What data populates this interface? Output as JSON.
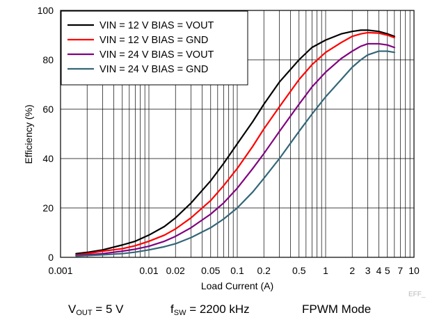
{
  "chart_data": {
    "type": "line",
    "xlabel": "Load Current (A)",
    "ylabel": "Efficiency (%)",
    "xscale": "log",
    "xlim": [
      0.001,
      10
    ],
    "ylim": [
      0,
      100
    ],
    "grid": true,
    "legend_position": "top-left",
    "x_ticks": [
      {
        "value": 0.001,
        "label": "0.001"
      },
      {
        "value": 0.01,
        "label": "0.01"
      },
      {
        "value": 0.02,
        "label": "0.02"
      },
      {
        "value": 0.05,
        "label": "0.05"
      },
      {
        "value": 0.1,
        "label": "0.1"
      },
      {
        "value": 0.2,
        "label": "0.2"
      },
      {
        "value": 0.5,
        "label": "0.5"
      },
      {
        "value": 1,
        "label": "1"
      },
      {
        "value": 2,
        "label": "2"
      },
      {
        "value": 3,
        "label": "3"
      },
      {
        "value": 4,
        "label": "4"
      },
      {
        "value": 5,
        "label": "5"
      },
      {
        "value": 7,
        "label": "7"
      },
      {
        "value": 10,
        "label": "10"
      }
    ],
    "y_ticks": [
      {
        "value": 0,
        "label": "0"
      },
      {
        "value": 20,
        "label": "20"
      },
      {
        "value": 40,
        "label": "40"
      },
      {
        "value": 60,
        "label": "60"
      },
      {
        "value": 80,
        "label": "80"
      },
      {
        "value": 100,
        "label": "100"
      }
    ],
    "series": [
      {
        "name": "VIN = 12 V BIAS = VOUT",
        "color": "#000000",
        "x": [
          0.0015,
          0.002,
          0.003,
          0.005,
          0.007,
          0.01,
          0.015,
          0.02,
          0.03,
          0.05,
          0.07,
          0.1,
          0.15,
          0.2,
          0.3,
          0.5,
          0.7,
          1,
          1.5,
          2,
          2.5,
          3,
          4,
          5,
          6
        ],
        "y": [
          1.5,
          2,
          3,
          5,
          6.5,
          9,
          12.5,
          16,
          22,
          31,
          38,
          46,
          55,
          62,
          71,
          80,
          85,
          88,
          90.5,
          91.5,
          92,
          92,
          91.5,
          90.5,
          89.5
        ]
      },
      {
        "name": "VIN = 12 V BIAS = GND",
        "color": "#ff0000",
        "x": [
          0.0015,
          0.002,
          0.003,
          0.005,
          0.007,
          0.01,
          0.015,
          0.02,
          0.03,
          0.05,
          0.07,
          0.1,
          0.15,
          0.2,
          0.3,
          0.5,
          0.7,
          1,
          1.5,
          2,
          2.5,
          3,
          4,
          5,
          6
        ],
        "y": [
          1,
          1.5,
          2.5,
          3.5,
          4.7,
          6.5,
          9,
          11.5,
          16,
          23,
          29,
          36,
          45,
          52,
          61,
          72,
          78,
          83,
          87,
          89.5,
          90.5,
          91,
          90.8,
          90,
          89
        ]
      },
      {
        "name": "VIN = 24 V BIAS = VOUT",
        "color": "#800080",
        "x": [
          0.0015,
          0.002,
          0.003,
          0.005,
          0.007,
          0.01,
          0.015,
          0.02,
          0.03,
          0.05,
          0.07,
          0.1,
          0.15,
          0.2,
          0.3,
          0.5,
          0.7,
          1,
          1.5,
          2,
          2.5,
          3,
          4,
          5,
          6
        ],
        "y": [
          0.8,
          1,
          1.5,
          2.5,
          3.3,
          4.5,
          6.5,
          8.5,
          12,
          17.5,
          22,
          28,
          36,
          42,
          51,
          62,
          69,
          75,
          80.5,
          83.5,
          85.5,
          86.5,
          86.5,
          86,
          85
        ]
      },
      {
        "name": "VIN = 24 V BIAS = GND",
        "color": "#336677",
        "x": [
          0.0015,
          0.002,
          0.003,
          0.005,
          0.007,
          0.01,
          0.015,
          0.02,
          0.03,
          0.05,
          0.07,
          0.1,
          0.15,
          0.2,
          0.3,
          0.5,
          0.7,
          1,
          1.5,
          2,
          2.5,
          3,
          4,
          5,
          6
        ],
        "y": [
          0.5,
          0.7,
          1,
          1.5,
          2.1,
          3,
          4.3,
          5.5,
          8,
          12,
          15.5,
          20,
          26.5,
          32,
          40,
          51,
          58,
          65,
          72,
          77,
          80,
          82,
          83.5,
          83.5,
          83
        ]
      }
    ],
    "tag": "EFF_"
  },
  "conditions": {
    "vout_main": "V",
    "vout_sub": "OUT",
    "vout_rest": " = 5 V",
    "fsw_main": "f",
    "fsw_sub": "SW",
    "fsw_rest": " = 2200 kHz",
    "mode": "FPWM Mode"
  }
}
